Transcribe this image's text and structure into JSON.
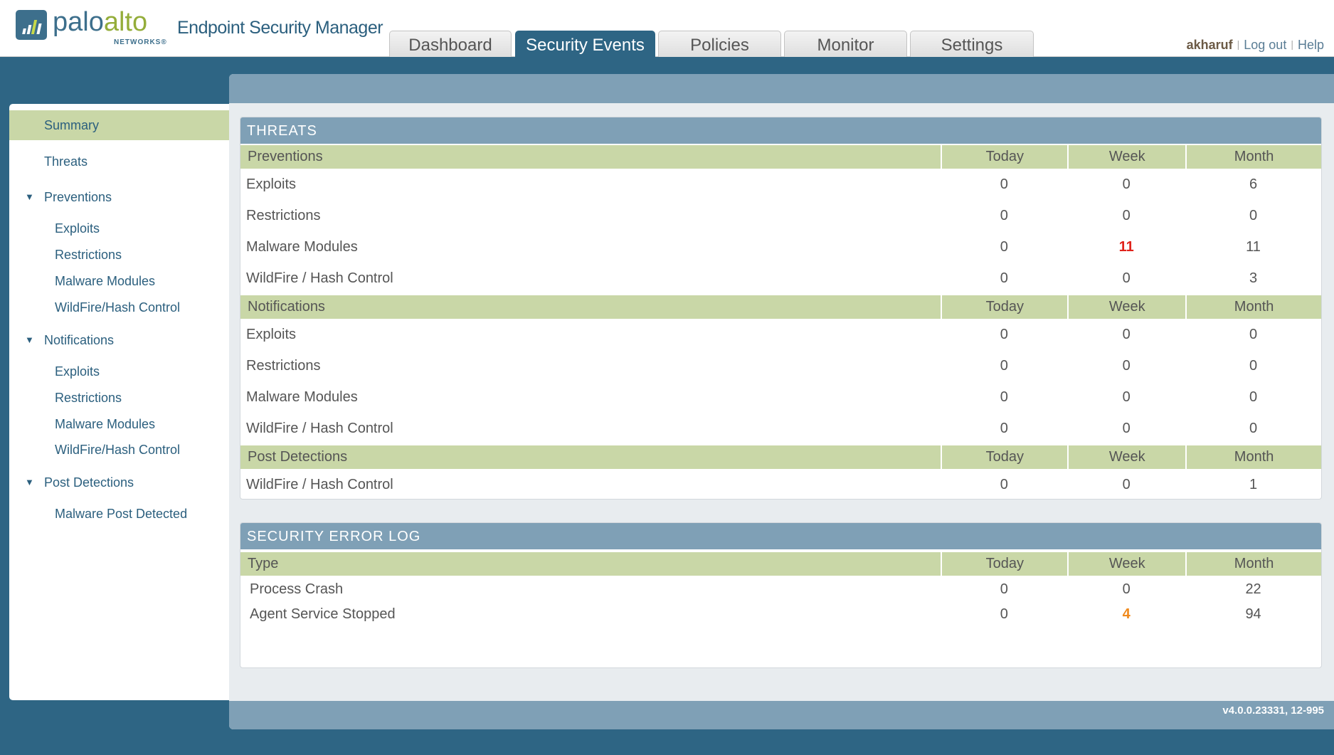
{
  "header": {
    "brand": {
      "palo": "palo",
      "alto": "alto",
      "networks": "NETWORKS®"
    },
    "app_title": "Endpoint Security Manager",
    "tabs": [
      {
        "label": "Dashboard",
        "active": false
      },
      {
        "label": "Security Events",
        "active": true
      },
      {
        "label": "Policies",
        "active": false
      },
      {
        "label": "Monitor",
        "active": false
      },
      {
        "label": "Settings",
        "active": false
      }
    ],
    "user": "akharuf",
    "logout": "Log out",
    "help": "Help"
  },
  "sidebar": {
    "summary": "Summary",
    "threats": "Threats",
    "preventions": "Preventions",
    "notifications": "Notifications",
    "post_detections": "Post Detections",
    "prev_items": [
      "Exploits",
      "Restrictions",
      "Malware Modules",
      "WildFire/Hash Control"
    ],
    "notif_items": [
      "Exploits",
      "Restrictions",
      "Malware Modules",
      "WildFire/Hash Control"
    ],
    "post_items": [
      "Malware Post Detected"
    ]
  },
  "threats": {
    "title": "THREATS",
    "cols": [
      "Today",
      "Week",
      "Month"
    ],
    "preventions": {
      "label": "Preventions",
      "rows": [
        [
          "Exploits",
          "0",
          "0",
          "6"
        ],
        [
          "Restrictions",
          "0",
          "0",
          "0"
        ],
        [
          "Malware Modules",
          "0",
          "11",
          "11"
        ],
        [
          "WildFire / Hash Control",
          "0",
          "0",
          "3"
        ]
      ]
    },
    "notifications": {
      "label": "Notifications",
      "rows": [
        [
          "Exploits",
          "0",
          "0",
          "0"
        ],
        [
          "Restrictions",
          "0",
          "0",
          "0"
        ],
        [
          "Malware Modules",
          "0",
          "0",
          "0"
        ],
        [
          "WildFire / Hash Control",
          "0",
          "0",
          "0"
        ]
      ]
    },
    "post": {
      "label": "Post Detections",
      "rows": [
        [
          "WildFire / Hash Control",
          "0",
          "0",
          "1"
        ]
      ]
    }
  },
  "errorlog": {
    "title": "SECURITY ERROR LOG",
    "type": "Type",
    "rows": [
      [
        "Process Crash",
        "0",
        "0",
        "22"
      ],
      [
        "Agent Service Stopped",
        "0",
        "4",
        "94"
      ]
    ]
  },
  "version": "v4.0.0.23331, 12-995",
  "colors": {
    "highlight_red": "#e0231c",
    "highlight_orange": "#f08a1d",
    "accent": "#2e6584",
    "section_green": "#c9d7a7"
  }
}
